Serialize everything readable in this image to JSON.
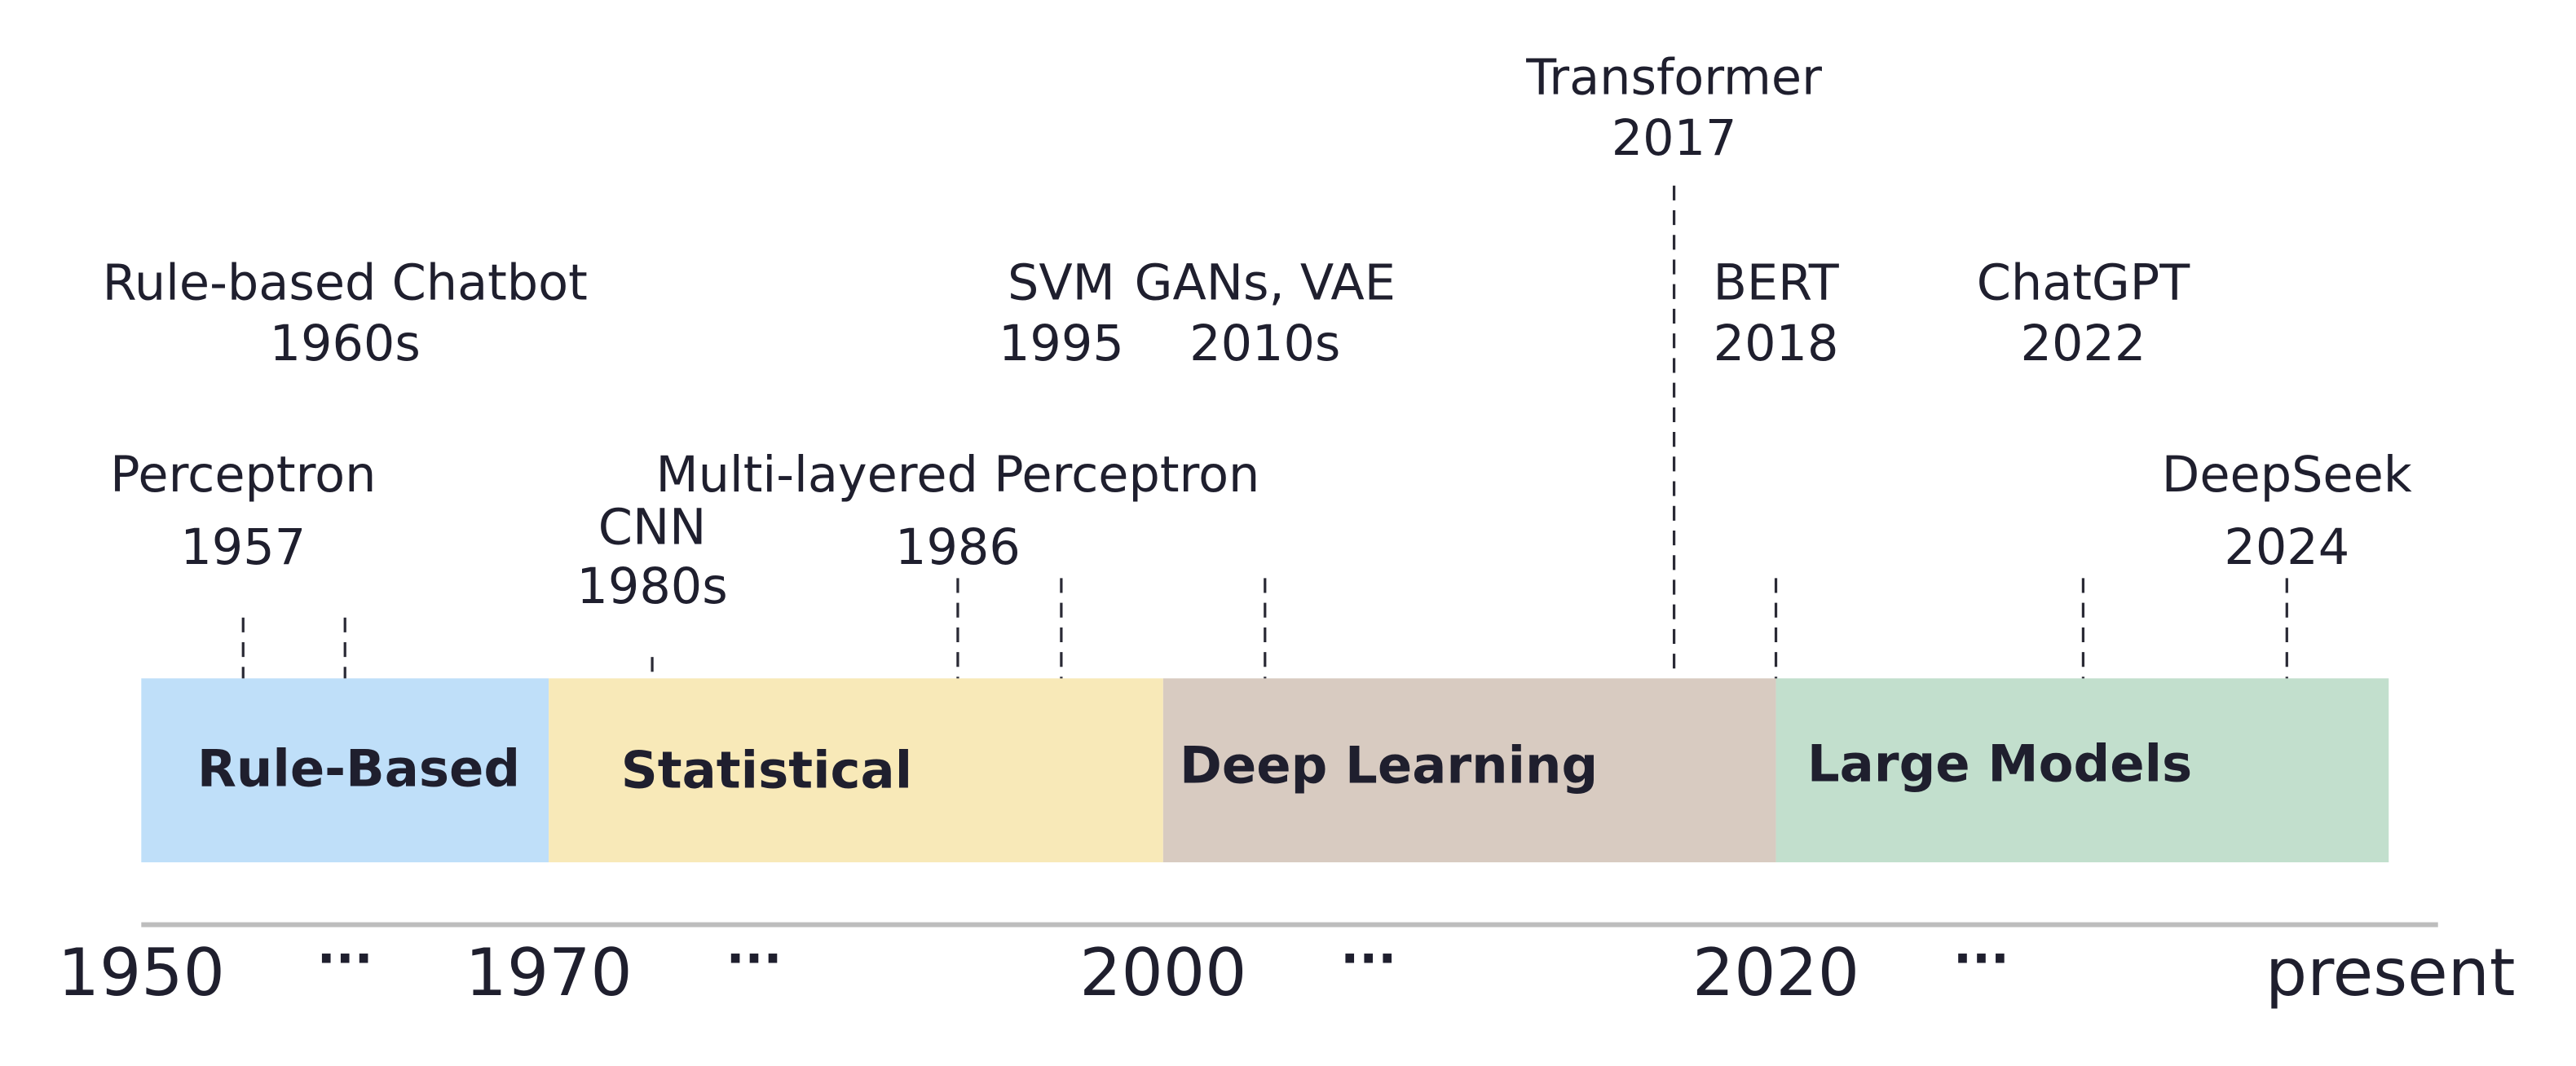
{
  "eras": [
    "Rule-Based",
    "Statistical",
    "Deep Learning",
    "Large Models"
  ],
  "events": [
    {
      "name": "Perceptron",
      "date": "1957"
    },
    {
      "name": "Rule-based Chatbot",
      "date": "1960s"
    },
    {
      "name": "CNN",
      "date": "1980s"
    },
    {
      "name": "Multi-layered Perceptron",
      "date": "1986"
    },
    {
      "name": "SVM",
      "date": "1995"
    },
    {
      "name": "GANs, VAE",
      "date": "2010s"
    },
    {
      "name": "Transformer",
      "date": "2017"
    },
    {
      "name": "BERT",
      "date": "2018"
    },
    {
      "name": "ChatGPT",
      "date": "2022"
    },
    {
      "name": "DeepSeek",
      "date": "2024"
    }
  ],
  "axis_labels": [
    "1950",
    "...",
    "1970",
    "...",
    "2000",
    "...",
    "2020",
    "...",
    "present"
  ]
}
